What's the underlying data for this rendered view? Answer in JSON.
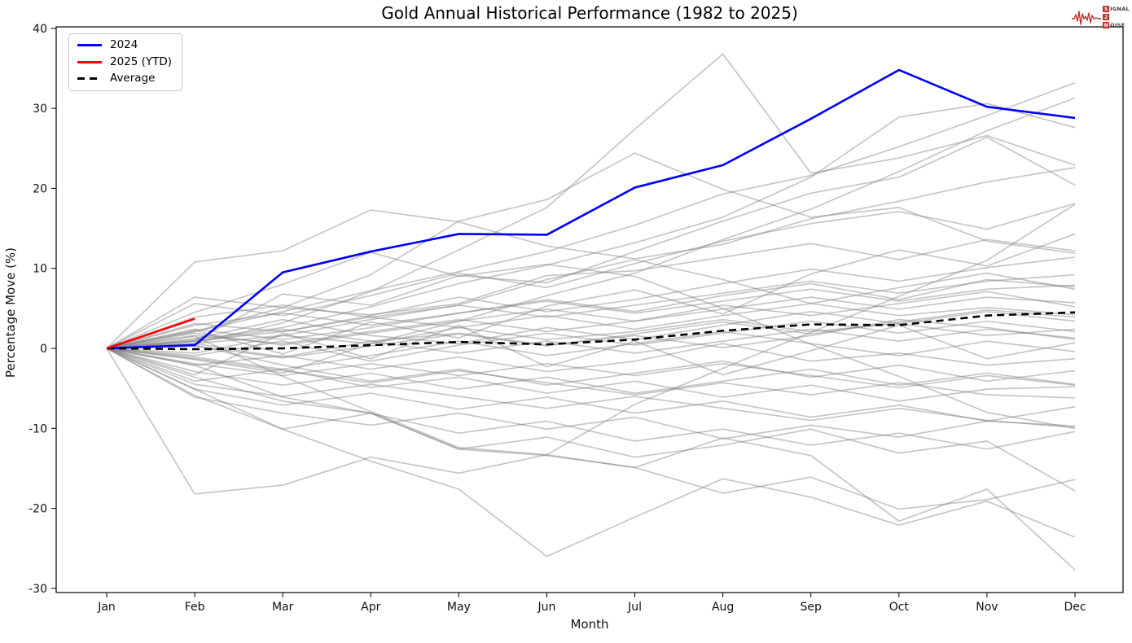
{
  "header": {
    "title": "Gold Annual Historical Performance (1982 to 2025)"
  },
  "logo": {
    "rows": [
      {
        "boxed": "S",
        "rest": "IGNAL"
      },
      {
        "boxed": "2",
        "rest": ""
      },
      {
        "boxed": "N",
        "rest": "OISE"
      }
    ],
    "accent_color": "#c5322f"
  },
  "axes": {
    "xlabel": "Month",
    "ylabel": "Percentage Move (%)"
  },
  "chart_data": {
    "type": "line",
    "title": "Gold Annual Historical Performance (1982 to 2025)",
    "xlabel": "Month",
    "ylabel": "Percentage Move (%)",
    "x_categories": [
      "Jan",
      "Feb",
      "Mar",
      "Apr",
      "May",
      "Jun",
      "Jul",
      "Aug",
      "Sep",
      "Oct",
      "Nov",
      "Dec"
    ],
    "yticks": [
      40,
      30,
      20,
      10,
      0,
      -10,
      -20,
      -30
    ],
    "ylim": [
      -30.7,
      40.4
    ],
    "grid": false,
    "legend_position": "upper-left",
    "series": [
      {
        "name": "2024",
        "color": "#0000ff",
        "style": "solid",
        "width": 2.6,
        "values": [
          0,
          0.4,
          9.5,
          12.1,
          14.3,
          14.2,
          20.1,
          22.9,
          28.7,
          34.8,
          30.2,
          28.8
        ]
      },
      {
        "name": "2025 (YTD)",
        "color": "#ff0000",
        "style": "solid",
        "width": 2.6,
        "values": [
          0,
          3.7
        ]
      },
      {
        "name": "Average",
        "color": "#000000",
        "style": "dashed",
        "width": 2.6,
        "values": [
          0,
          -0.1,
          0.0,
          0.4,
          0.8,
          0.5,
          1.1,
          2.2,
          3.0,
          2.9,
          4.1,
          4.5
        ]
      }
    ],
    "background_series": {
      "name": "historical-years-1982-2023",
      "color": "#808080",
      "opacity": 0.45,
      "width": 1.7,
      "values": [
        [
          0,
          10.8,
          12.2,
          17.3,
          15.8,
          12.8,
          11.2,
          13.0,
          16.2,
          18.4,
          20.8,
          22.6
        ],
        [
          0,
          0.6,
          3.2,
          7.1,
          12.3,
          17.6,
          27.4,
          36.8,
          21.9,
          23.8,
          26.6,
          22.9
        ],
        [
          0,
          2.1,
          4.6,
          7.2,
          9.6,
          12.1,
          15.4,
          19.3,
          21.6,
          25.2,
          29.1,
          33.2
        ],
        [
          0,
          -1.4,
          -3.1,
          0.6,
          3.4,
          6.6,
          9.4,
          13.6,
          17.4,
          22.1,
          27.2,
          31.3
        ],
        [
          0,
          1.1,
          2.6,
          5.2,
          8.1,
          10.4,
          13.2,
          16.4,
          21.4,
          28.9,
          30.6,
          27.6
        ],
        [
          0,
          0.9,
          6.8,
          5.4,
          9.1,
          8.2,
          12.1,
          15.9,
          19.4,
          21.4,
          26.4,
          20.4
        ],
        [
          0,
          5.6,
          4.1,
          6.6,
          9.4,
          7.6,
          10.6,
          13.4,
          15.6,
          17.1,
          14.9,
          18.1
        ],
        [
          0,
          6.4,
          5.1,
          4.2,
          5.6,
          9.1,
          9.7,
          11.4,
          13.1,
          11.1,
          13.6,
          12.2
        ],
        [
          0,
          3.1,
          2.1,
          4.1,
          6.4,
          4.6,
          6.1,
          8.1,
          9.9,
          8.4,
          10.1,
          11.4
        ],
        [
          0,
          2.4,
          1.1,
          2.6,
          4.4,
          6.1,
          4.6,
          6.6,
          8.1,
          6.1,
          8.6,
          7.7
        ],
        [
          0,
          1.6,
          0.6,
          2.1,
          3.6,
          2.1,
          3.4,
          5.4,
          4.1,
          5.6,
          7.1,
          5.2
        ],
        [
          0,
          0.9,
          2.1,
          3.9,
          2.6,
          4.1,
          2.4,
          4.1,
          5.6,
          4.1,
          5.1,
          4.2
        ],
        [
          0,
          2.1,
          5.1,
          9.2,
          15.9,
          18.6,
          24.4,
          19.9,
          16.4,
          17.6,
          13.4,
          11.9
        ],
        [
          0,
          -0.6,
          1.6,
          3.6,
          5.4,
          8.6,
          11.1,
          8.6,
          5.6,
          7.6,
          9.4,
          7.4
        ],
        [
          0,
          1.2,
          3.6,
          1.6,
          0.6,
          2.6,
          1.1,
          2.9,
          4.6,
          3.1,
          1.6,
          2.4
        ],
        [
          0,
          0.6,
          -1.1,
          0.9,
          1.9,
          0.4,
          1.6,
          0.1,
          1.6,
          3.6,
          2.6,
          1.1
        ],
        [
          0,
          -1.1,
          -2.6,
          -0.9,
          0.9,
          -0.9,
          0.6,
          2.1,
          0.6,
          -0.9,
          0.9,
          -0.4
        ],
        [
          0,
          -2.1,
          -0.9,
          -2.6,
          -1.1,
          -2.9,
          -1.6,
          0.6,
          -1.6,
          -0.6,
          -2.1,
          -1.3
        ],
        [
          0,
          0.4,
          -2.1,
          -4.1,
          -2.6,
          -4.6,
          -3.1,
          -1.6,
          -3.6,
          -2.1,
          -4.1,
          -2.8
        ],
        [
          0,
          -2.9,
          -4.6,
          -3.1,
          -5.1,
          -3.6,
          -5.6,
          -4.1,
          -2.6,
          -4.6,
          -3.1,
          -4.5
        ],
        [
          0,
          -4.1,
          -2.6,
          -4.9,
          -3.6,
          -5.6,
          -4.1,
          -6.1,
          -4.6,
          -6.6,
          -5.1,
          -4.8
        ],
        [
          0,
          -5.1,
          -7.1,
          -5.6,
          -7.6,
          -6.1,
          -8.1,
          -6.6,
          -8.6,
          -7.1,
          -9.1,
          -7.3
        ],
        [
          0,
          -6.1,
          -8.1,
          -9.6,
          -8.1,
          -10.1,
          -8.6,
          -11.3,
          -9.6,
          -11.1,
          -9.1,
          -9.7
        ],
        [
          0,
          -3.6,
          -6.6,
          -8.1,
          -10.6,
          -9.1,
          -11.6,
          -10.1,
          -12.1,
          -10.6,
          -12.6,
          -10.4
        ],
        [
          0,
          -5.9,
          -10.1,
          -8.1,
          -12.6,
          -11.1,
          -13.6,
          -12.1,
          -10.1,
          -13.1,
          -11.6,
          -17.8
        ],
        [
          0,
          -18.2,
          -17.1,
          -13.6,
          -15.6,
          -13.3,
          -14.9,
          -18.1,
          -16.1,
          -20.1,
          -18.9,
          -16.4
        ],
        [
          0,
          -5.1,
          -10.1,
          -14.1,
          -17.6,
          -26.0,
          -21.1,
          -16.3,
          -18.6,
          -22.1,
          -19.1,
          -23.6
        ],
        [
          0,
          -2.1,
          -6.1,
          -8.1,
          -12.6,
          -13.4,
          -14.9,
          -11.2,
          -13.4,
          -21.6,
          -17.6,
          -27.7
        ],
        [
          0,
          0.6,
          1.6,
          0.6,
          2.6,
          1.1,
          2.1,
          3.6,
          2.1,
          3.1,
          4.6,
          3.4
        ],
        [
          0,
          -0.9,
          0.9,
          -1.6,
          0.4,
          1.9,
          0.4,
          1.9,
          3.4,
          1.9,
          3.4,
          2.1
        ],
        [
          0,
          1.9,
          0.4,
          1.9,
          3.4,
          4.9,
          3.4,
          4.9,
          6.4,
          4.9,
          6.4,
          5.7
        ],
        [
          0,
          -1.9,
          -3.4,
          -1.9,
          -3.4,
          -1.9,
          -3.4,
          -1.9,
          -3.4,
          -4.9,
          -3.4,
          -4.6
        ],
        [
          0,
          0.9,
          2.4,
          0.9,
          -0.6,
          0.9,
          -0.6,
          0.9,
          2.4,
          0.9,
          2.4,
          1.3
        ],
        [
          0,
          -1.3,
          -2.8,
          -4.3,
          -2.8,
          -4.3,
          -5.8,
          -4.3,
          -5.8,
          -4.3,
          -5.8,
          -6.2
        ],
        [
          0,
          2.9,
          4.4,
          2.9,
          4.4,
          5.9,
          4.4,
          5.9,
          7.4,
          5.9,
          7.4,
          7.9
        ],
        [
          0,
          0.3,
          -1.2,
          0.3,
          1.8,
          0.3,
          1.8,
          3.3,
          1.8,
          3.3,
          4.8,
          3.9
        ],
        [
          0,
          -4.5,
          -6.0,
          -4.5,
          -6.0,
          -7.5,
          -6.0,
          -7.5,
          -9.0,
          -7.5,
          -9.0,
          -9.9
        ],
        [
          0,
          3.9,
          5.4,
          3.9,
          5.4,
          3.9,
          5.4,
          6.9,
          8.4,
          6.9,
          8.4,
          9.2
        ],
        [
          0,
          2.3,
          -0.7,
          3.3,
          1.3,
          5.3,
          7.3,
          4.3,
          9.3,
          12.3,
          10.3,
          14.3
        ],
        [
          0,
          -3.3,
          1.9,
          -1.3,
          2.9,
          -2.3,
          0.9,
          -3.3,
          -0.3,
          2.9,
          -1.3,
          0.7
        ],
        [
          0,
          1.5,
          -3.5,
          -7.9,
          -12.4,
          -13.3,
          -7.0,
          -2.5,
          2.0,
          6.5,
          11.0,
          18.0
        ],
        [
          0,
          4.5,
          8.0,
          12.0,
          9.0,
          10.5,
          9.0,
          5.0,
          0.5,
          -3.5,
          -8.0,
          -10.0
        ]
      ]
    }
  }
}
